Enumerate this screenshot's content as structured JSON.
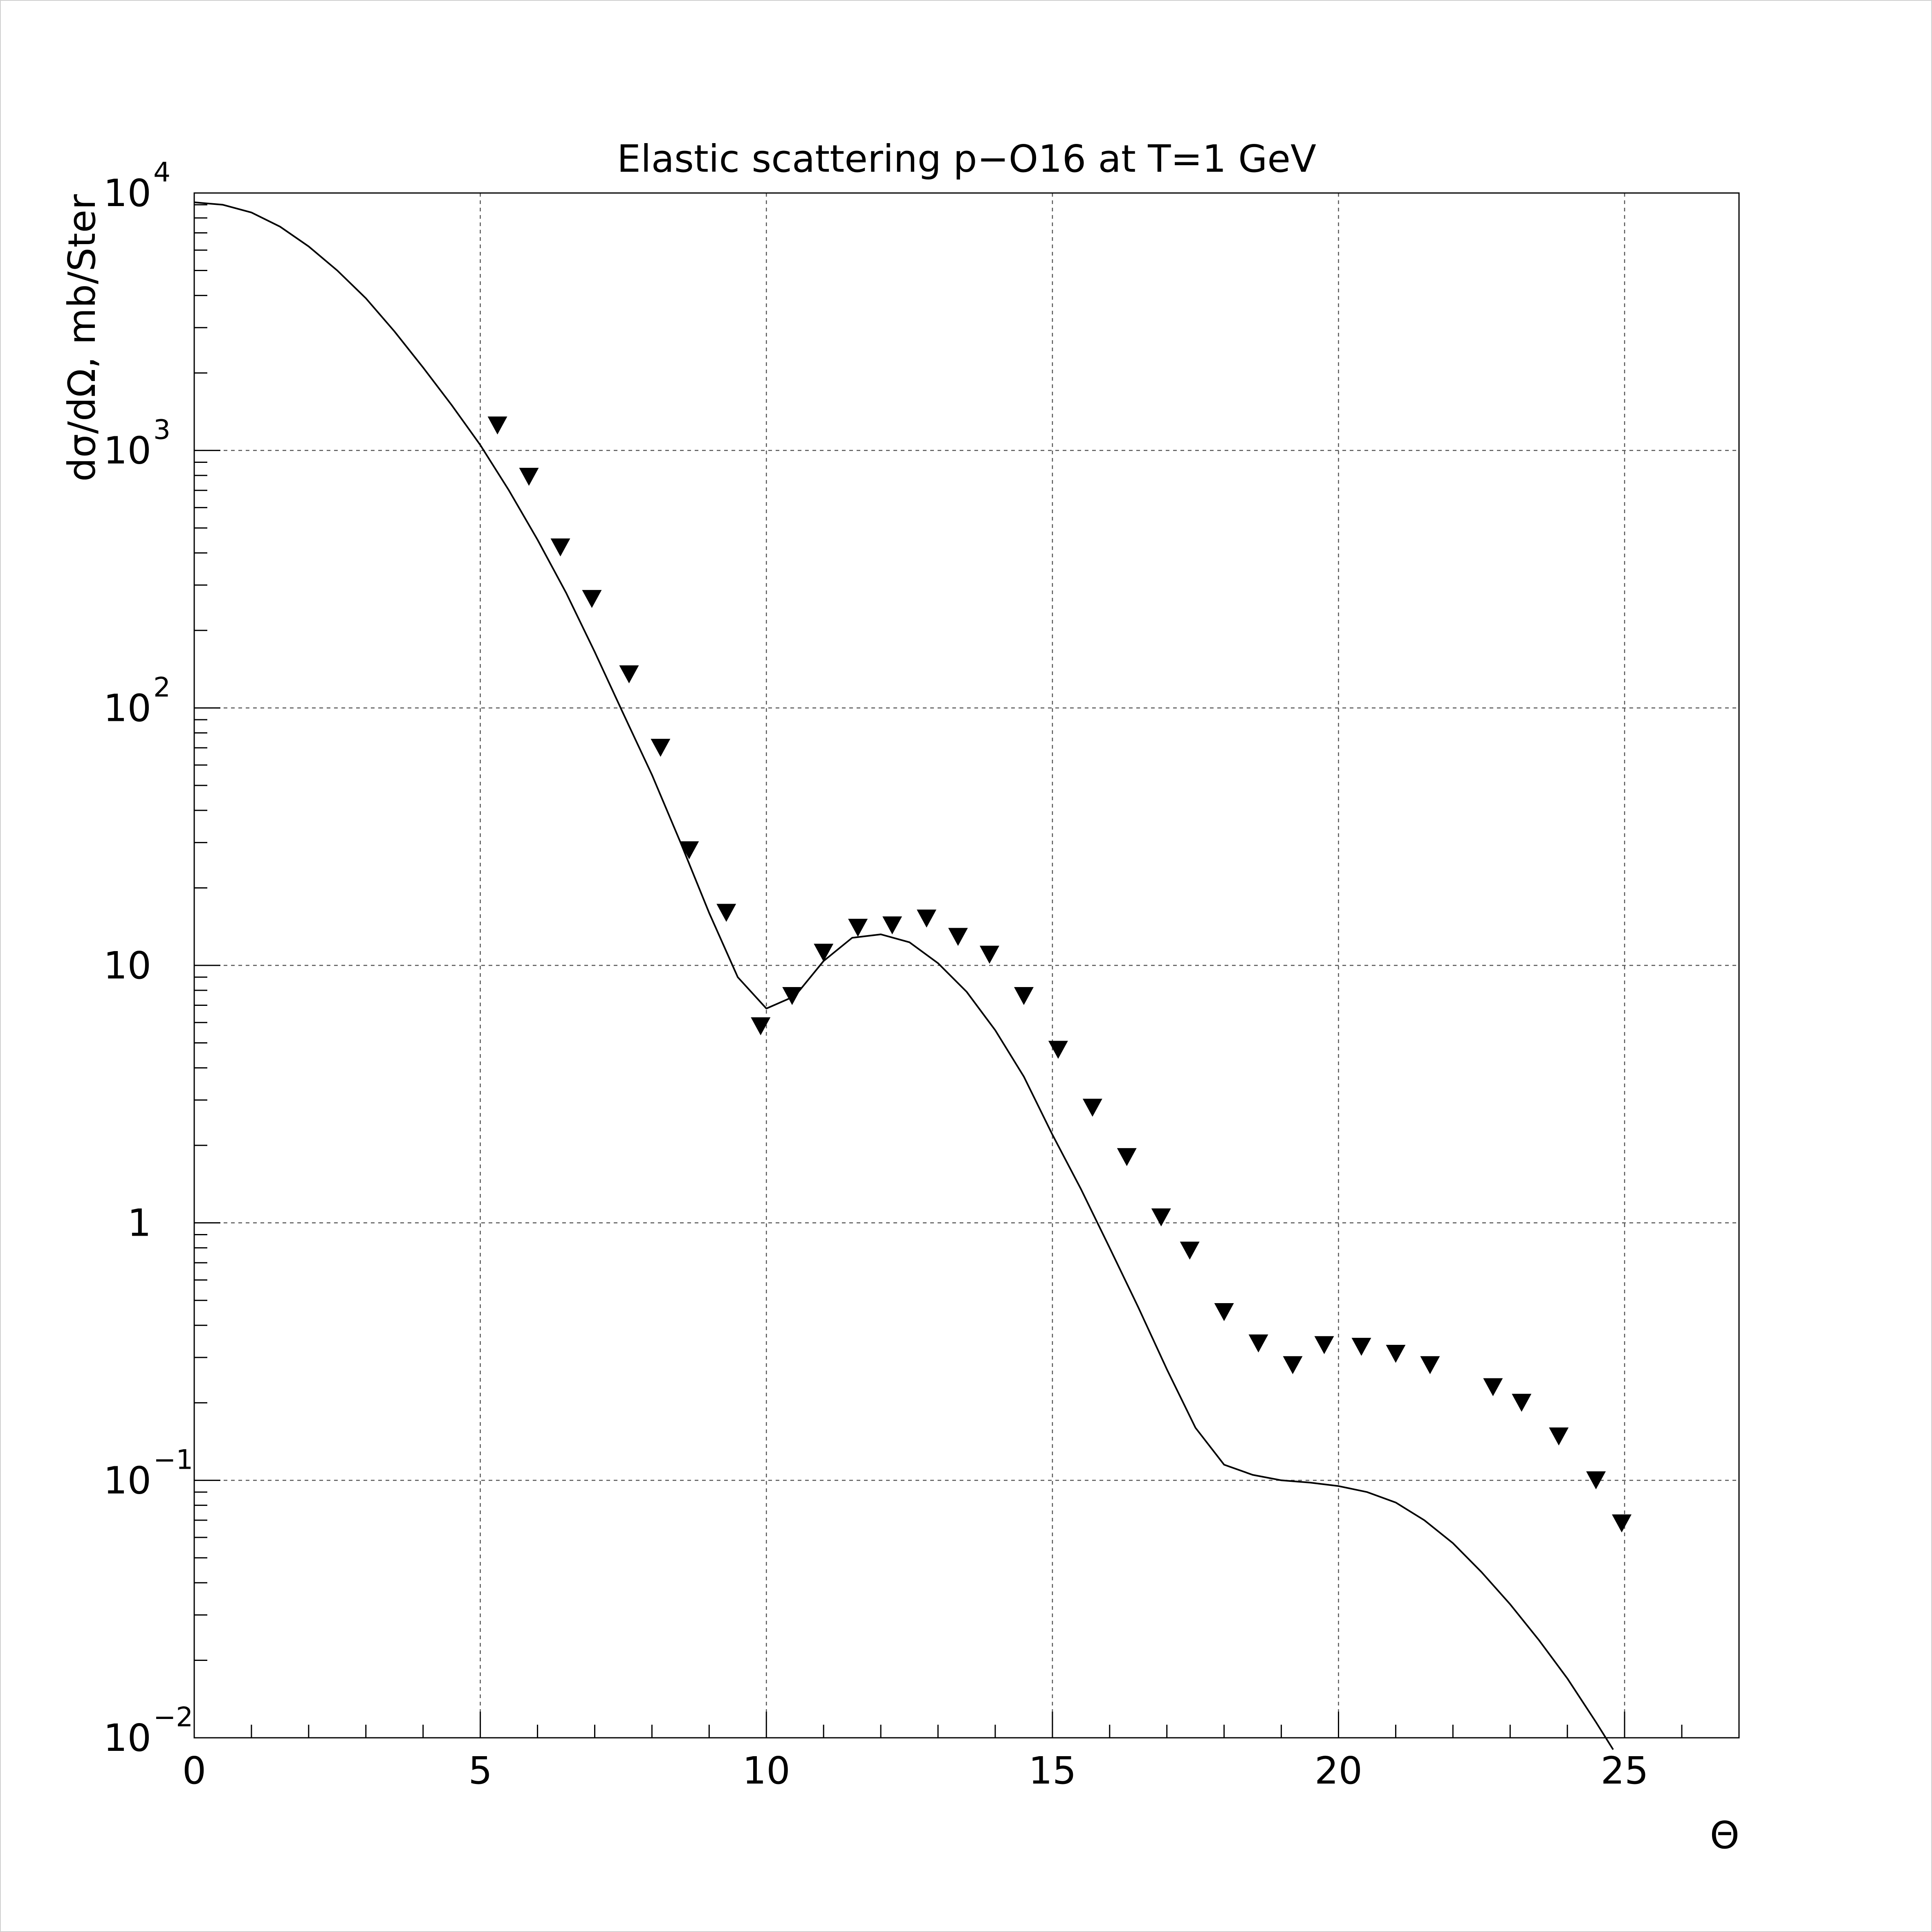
{
  "chart_data": {
    "type": "scatter",
    "title": "Elastic scattering p−O16 at T=1 GeV",
    "xlabel": "Θ",
    "ylabel": "dσ/dΩ, mb/Ster",
    "xlim": [
      0,
      27
    ],
    "ylim": [
      0.01,
      10000
    ],
    "yscale": "log",
    "grid": true,
    "x_ticks": [
      {
        "value": 0,
        "label": "0"
      },
      {
        "value": 5,
        "label": "5"
      },
      {
        "value": 10,
        "label": "10"
      },
      {
        "value": 15,
        "label": "15"
      },
      {
        "value": 20,
        "label": "20"
      },
      {
        "value": 25,
        "label": "25"
      }
    ],
    "y_ticks": [
      {
        "value": 0.01,
        "base": "10",
        "exp": "−2"
      },
      {
        "value": 0.1,
        "base": "10",
        "exp": "−1"
      },
      {
        "value": 1,
        "base": "1",
        "exp": ""
      },
      {
        "value": 10,
        "base": "10",
        "exp": ""
      },
      {
        "value": 100,
        "base": "10",
        "exp": "2"
      },
      {
        "value": 1000,
        "base": "10",
        "exp": "3"
      },
      {
        "value": 10000,
        "base": "10",
        "exp": "4"
      }
    ],
    "series": [
      {
        "kind": "line",
        "color": "#000000",
        "x": [
          0,
          0.5,
          1,
          1.5,
          2,
          2.5,
          3,
          3.5,
          4,
          4.5,
          5,
          5.5,
          6,
          6.5,
          7,
          7.5,
          8,
          8.5,
          9,
          9.5,
          10,
          10.5,
          11,
          11.5,
          12,
          12.5,
          13,
          13.5,
          14,
          14.5,
          15,
          15.5,
          16,
          16.5,
          17,
          17.5,
          18,
          18.5,
          19,
          19.5,
          20,
          20.5,
          21,
          21.5,
          22,
          22.5,
          23,
          23.5,
          24,
          24.5,
          24.8
        ],
        "y": [
          9200,
          9000,
          8400,
          7400,
          6200,
          5000,
          3900,
          2900,
          2100,
          1500,
          1050,
          700,
          450,
          280,
          165,
          95,
          55,
          30,
          16,
          9,
          6.8,
          7.6,
          10.4,
          12.8,
          13.2,
          12.3,
          10.2,
          7.9,
          5.6,
          3.7,
          2.2,
          1.35,
          0.8,
          0.47,
          0.27,
          0.16,
          0.115,
          0.105,
          0.1,
          0.098,
          0.095,
          0.09,
          0.082,
          0.07,
          0.057,
          0.044,
          0.033,
          0.024,
          0.017,
          0.0115,
          0.009
        ]
      },
      {
        "kind": "scatter",
        "marker": "triangle-down",
        "color": "#000000",
        "x": [
          5.3,
          5.85,
          6.4,
          6.95,
          7.6,
          8.15,
          8.65,
          9.3,
          9.9,
          10.45,
          11,
          11.6,
          12.2,
          12.8,
          13.35,
          13.9,
          14.5,
          15.1,
          15.7,
          16.3,
          16.9,
          17.4,
          18,
          18.6,
          19.2,
          19.75,
          20.4,
          21,
          21.6,
          22.7,
          23.2,
          23.85,
          24.5,
          24.95
        ],
        "y": [
          1250,
          790,
          420,
          265,
          135,
          70,
          28,
          16,
          5.8,
          7.6,
          11.2,
          14,
          14.3,
          15.2,
          12.9,
          11,
          7.6,
          4.7,
          2.8,
          1.8,
          1.05,
          0.78,
          0.45,
          0.34,
          0.28,
          0.335,
          0.33,
          0.31,
          0.28,
          0.23,
          0.2,
          0.148,
          0.1,
          0.068
        ]
      }
    ]
  }
}
